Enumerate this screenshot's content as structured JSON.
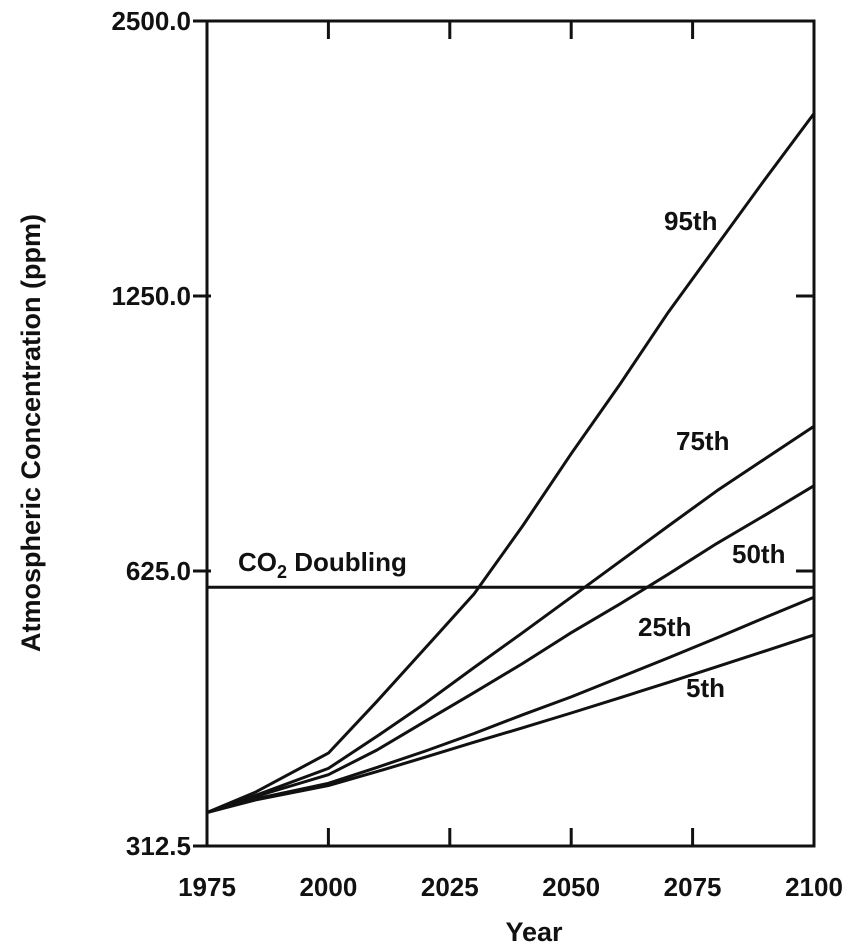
{
  "chart_data": {
    "type": "line",
    "title": "",
    "xlabel": "Year",
    "ylabel": "Atmospheric Concentration (ppm)",
    "x_scale": "linear",
    "y_scale": "log2",
    "xlim": [
      1975,
      2100
    ],
    "ylim": [
      312.5,
      2500
    ],
    "x_ticks": [
      1975,
      2000,
      2025,
      2050,
      2075,
      2100
    ],
    "x_tick_labels": [
      "1975",
      "2000",
      "2025",
      "2050",
      "2075",
      "2100"
    ],
    "y_ticks": [
      312.5,
      625,
      1250,
      2500
    ],
    "y_tick_labels": [
      "312.5",
      "625.0",
      "1250.0",
      "2500.0"
    ],
    "grid": false,
    "legend": "none",
    "reference_line": {
      "label_main": "CO",
      "label_sub": "2",
      "label_rest": " Doubling",
      "y": 600
    },
    "series": [
      {
        "name": "95th",
        "x": [
          1975,
          1985,
          2000,
          2010,
          2020,
          2030,
          2040,
          2050,
          2060,
          2070,
          2080,
          2090,
          2100
        ],
        "y": [
          340,
          358,
          395,
          450,
          515,
          590,
          700,
          840,
          1000,
          1200,
          1420,
          1680,
          1980
        ]
      },
      {
        "name": "75th",
        "x": [
          1975,
          1985,
          2000,
          2010,
          2020,
          2030,
          2040,
          2050,
          2060,
          2070,
          2080,
          2090,
          2100
        ],
        "y": [
          340,
          355,
          380,
          412,
          448,
          490,
          535,
          585,
          640,
          700,
          765,
          830,
          900
        ]
      },
      {
        "name": "50th",
        "x": [
          1975,
          1985,
          2000,
          2010,
          2020,
          2030,
          2040,
          2050,
          2060,
          2070,
          2080,
          2090,
          2100
        ],
        "y": [
          340,
          354,
          374,
          398,
          428,
          460,
          495,
          535,
          575,
          620,
          670,
          720,
          775
        ]
      },
      {
        "name": "25th",
        "x": [
          1975,
          1985,
          2000,
          2010,
          2020,
          2030,
          2040,
          2050,
          2060,
          2070,
          2080,
          2090,
          2100
        ],
        "y": [
          340,
          352,
          366,
          381,
          397,
          415,
          435,
          455,
          478,
          502,
          528,
          556,
          585
        ]
      },
      {
        "name": "5th",
        "x": [
          1975,
          1985,
          2000,
          2010,
          2020,
          2030,
          2040,
          2050,
          2060,
          2070,
          2080,
          2090,
          2100
        ],
        "y": [
          340,
          351,
          364,
          377,
          391,
          406,
          421,
          437,
          454,
          472,
          491,
          511,
          532
        ]
      }
    ]
  }
}
